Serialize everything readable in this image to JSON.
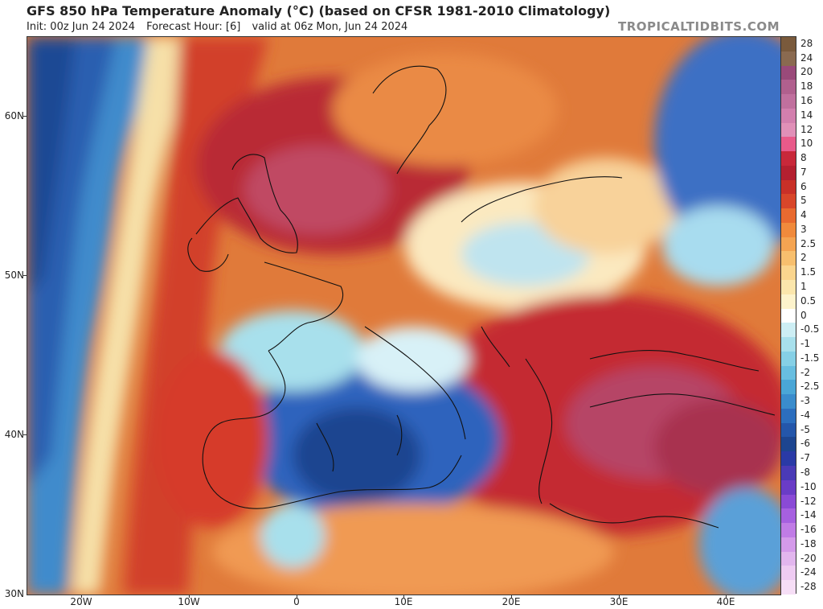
{
  "header": {
    "title": "GFS 850 hPa Temperature Anomaly (°C) (based on CFSR 1981-2010 Climatology)",
    "init": "Init: 00z Jun 24 2024",
    "forecast_hour": "Forecast Hour: [6]",
    "valid": "valid at 06z Mon, Jun 24 2024",
    "brand": "TROPICALTIDBITS.COM"
  },
  "axes": {
    "lat_labels": [
      "60N",
      "50N",
      "40N",
      "30N"
    ],
    "lon_labels": [
      "20W",
      "10W",
      "0",
      "10E",
      "20E",
      "30E",
      "40E"
    ]
  },
  "colorbar": {
    "labels": [
      "28",
      "24",
      "20",
      "18",
      "16",
      "14",
      "12",
      "10",
      "8",
      "7",
      "6",
      "5",
      "4",
      "3",
      "2.5",
      "2",
      "1.5",
      "1",
      "0.5",
      "0",
      "-0.5",
      "-1",
      "-1.5",
      "-2",
      "-2.5",
      "-3",
      "-4",
      "-5",
      "-6",
      "-7",
      "-8",
      "-10",
      "-12",
      "-14",
      "-16",
      "-18",
      "-20",
      "-24",
      "-28"
    ],
    "colors": [
      "#7a5a3c",
      "#8a6a50",
      "#9a4a7a",
      "#b0608e",
      "#c0709e",
      "#d27fae",
      "#e090b8",
      "#e85a8a",
      "#c8283a",
      "#b42030",
      "#c83028",
      "#d8462a",
      "#e86a30",
      "#f08a3c",
      "#f4a452",
      "#f7bf6e",
      "#fad58e",
      "#fbe6ac",
      "#fdf3cc",
      "#ffffff",
      "#cdeef4",
      "#a8e0ec",
      "#86d0e6",
      "#68bee0",
      "#4aa6d6",
      "#3a8ccc",
      "#2c6ebe",
      "#2456aa",
      "#1d4590",
      "#2a3aa6",
      "#4a3ab6",
      "#6a3cc6",
      "#8a4ad6",
      "#a660e0",
      "#c07ce6",
      "#d49aea",
      "#e2b6ee",
      "#eecbf2",
      "#f6def6"
    ]
  }
}
